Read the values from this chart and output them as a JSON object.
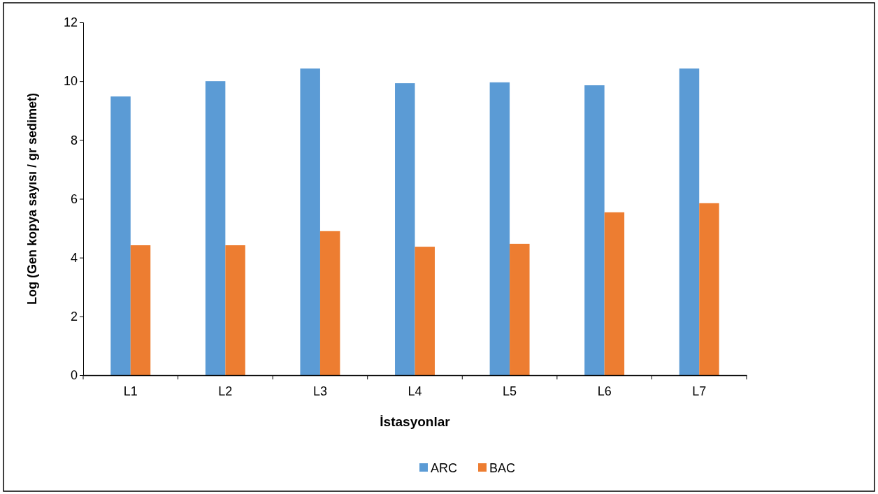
{
  "chart_data": {
    "type": "bar",
    "xlabel": "İstasyonlar",
    "ylabel": "Log (Gen kopya sayısı / gr sedimet)",
    "categories": [
      "L1",
      "L2",
      "L3",
      "L4",
      "L5",
      "L6",
      "L7"
    ],
    "series": [
      {
        "name": "ARC",
        "color": "#5b9bd5",
        "values": [
          9.48,
          10.0,
          10.43,
          9.93,
          9.96,
          9.86,
          10.43
        ]
      },
      {
        "name": "BAC",
        "color": "#ed7d31",
        "values": [
          4.42,
          4.42,
          4.9,
          4.37,
          4.47,
          5.54,
          5.85
        ]
      }
    ],
    "ylim": [
      0,
      12
    ],
    "yticks": [
      0,
      2,
      4,
      6,
      8,
      10,
      12
    ],
    "grid": false,
    "legend": "bottom"
  }
}
